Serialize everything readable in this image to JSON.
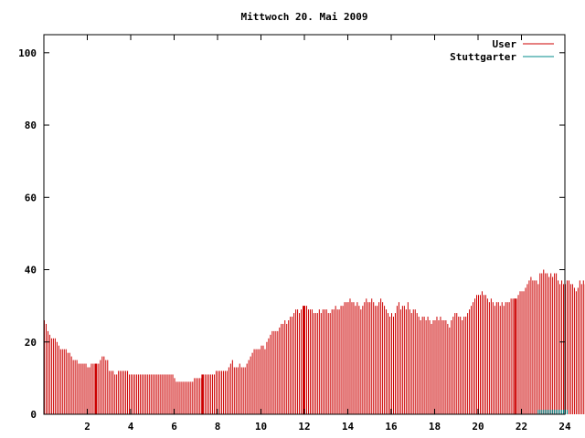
{
  "chart_data": {
    "type": "bar",
    "title": "Mittwoch 20. Mai 2009",
    "xlabel": "",
    "ylabel": "",
    "xlim": [
      0,
      24
    ],
    "ylim": [
      0,
      105
    ],
    "x_ticks": [
      2,
      4,
      6,
      8,
      10,
      12,
      14,
      16,
      18,
      20,
      22,
      24
    ],
    "x_tick_labels": [
      "2",
      "4",
      "6",
      "8",
      "10",
      "12",
      "14",
      "16",
      "18",
      "20",
      "22",
      "24"
    ],
    "y_ticks": [
      0,
      20,
      40,
      60,
      80,
      100
    ],
    "y_tick_labels": [
      "0",
      "20",
      "40",
      "60",
      "80",
      "100"
    ],
    "grid": false,
    "legend_position": "top-right",
    "series": [
      {
        "name": "User",
        "color": "#cc0000",
        "interval_minutes": 5,
        "start_hour": 0,
        "values": [
          26,
          25,
          23,
          22,
          21,
          21,
          21,
          20,
          19,
          18,
          18,
          18,
          18,
          17,
          17,
          16,
          15,
          15,
          15,
          14,
          14,
          14,
          14,
          14,
          13,
          13,
          14,
          14,
          14,
          14,
          14,
          15,
          16,
          16,
          15,
          15,
          12,
          12,
          12,
          11,
          11,
          12,
          12,
          12,
          12,
          12,
          12,
          11,
          11,
          11,
          11,
          11,
          11,
          11,
          11,
          11,
          11,
          11,
          11,
          11,
          11,
          11,
          11,
          11,
          11,
          11,
          11,
          11,
          11,
          11,
          11,
          11,
          10,
          9,
          9,
          9,
          9,
          9,
          9,
          9,
          9,
          9,
          9,
          10,
          10,
          10,
          10,
          10,
          11,
          11,
          11,
          11,
          11,
          11,
          11,
          12,
          12,
          12,
          12,
          12,
          12,
          12,
          13,
          14,
          15,
          13,
          13,
          13,
          14,
          13,
          13,
          13,
          14,
          15,
          16,
          17,
          18,
          18,
          18,
          18,
          19,
          19,
          18,
          20,
          21,
          22,
          23,
          23,
          23,
          23,
          24,
          25,
          25,
          26,
          25,
          26,
          27,
          27,
          28,
          29,
          29,
          28,
          29,
          30,
          30,
          30,
          29,
          29,
          29,
          28,
          28,
          28,
          29,
          28,
          29,
          29,
          29,
          28,
          28,
          29,
          29,
          30,
          29,
          29,
          30,
          30,
          31,
          31,
          31,
          32,
          31,
          31,
          30,
          31,
          30,
          29,
          30,
          31,
          32,
          31,
          31,
          32,
          31,
          30,
          30,
          31,
          32,
          31,
          30,
          29,
          28,
          27,
          28,
          27,
          28,
          30,
          31,
          29,
          30,
          30,
          29,
          31,
          29,
          28,
          29,
          29,
          28,
          27,
          26,
          27,
          27,
          26,
          27,
          26,
          25,
          26,
          26,
          27,
          26,
          27,
          26,
          26,
          26,
          25,
          24,
          26,
          27,
          28,
          28,
          27,
          27,
          26,
          27,
          27,
          28,
          29,
          30,
          31,
          32,
          33,
          33,
          33,
          34,
          33,
          33,
          32,
          31,
          32,
          31,
          30,
          31,
          31,
          30,
          31,
          30,
          31,
          31,
          31,
          32,
          32,
          32,
          32,
          33,
          34,
          34,
          34,
          35,
          36,
          37,
          38,
          37,
          37,
          37,
          36,
          39,
          39,
          40,
          39,
          39,
          38,
          39,
          38,
          39,
          39,
          37,
          36,
          37,
          36,
          36,
          37,
          37,
          36,
          36,
          35,
          34,
          35,
          37,
          36,
          37,
          36,
          38,
          35,
          35,
          35
        ]
      },
      {
        "name": "Stuttgarter",
        "color": "#008b8b",
        "interval_minutes": 5,
        "start_hour": 0,
        "values": [
          0,
          0,
          0,
          0,
          0,
          0,
          0,
          0,
          0,
          0,
          0,
          0,
          0,
          0,
          0,
          0,
          0,
          0,
          0,
          0,
          0,
          0,
          0,
          0,
          0,
          0,
          0,
          0,
          0,
          0,
          0,
          0,
          0,
          0,
          0,
          0,
          0,
          0,
          0,
          0,
          0,
          0,
          0,
          0,
          0,
          0,
          0,
          0,
          0,
          0,
          0,
          0,
          0,
          0,
          0,
          0,
          0,
          0,
          0,
          0,
          0,
          0,
          0,
          0,
          0,
          0,
          0,
          0,
          0,
          0,
          0,
          0,
          0,
          0,
          0,
          0,
          0,
          0,
          0,
          0,
          0,
          0,
          0,
          0,
          0,
          0,
          0,
          0,
          0,
          0,
          0,
          0,
          0,
          0,
          0,
          0,
          0,
          0,
          0,
          0,
          0,
          0,
          0,
          0,
          0,
          0,
          0,
          0,
          0,
          0,
          0,
          0,
          0,
          0,
          0,
          0,
          0,
          0,
          0,
          0,
          0,
          0,
          0,
          0,
          0,
          0,
          0,
          0,
          0,
          0,
          0,
          0,
          0,
          0,
          0,
          0,
          0,
          0,
          0,
          0,
          0,
          0,
          0,
          0,
          0,
          0,
          0,
          0,
          0,
          0,
          0,
          0,
          0,
          0,
          0,
          0,
          0,
          0,
          0,
          0,
          0,
          0,
          0,
          0,
          0,
          0,
          0,
          0,
          0,
          0,
          0,
          0,
          0,
          0,
          0,
          0,
          0,
          0,
          0,
          0,
          0,
          0,
          0,
          0,
          0,
          0,
          0,
          0,
          0,
          0,
          0,
          0,
          0,
          0,
          0,
          0,
          0,
          0,
          0,
          0,
          0,
          0,
          0,
          0,
          0,
          0,
          0,
          0,
          0,
          0,
          0,
          0,
          0,
          0,
          0,
          0,
          0,
          0,
          0,
          0,
          0,
          0,
          0,
          0,
          0,
          0,
          0,
          0,
          0,
          0,
          0,
          0,
          0,
          0,
          0,
          0,
          0,
          0,
          0,
          0,
          0,
          0,
          0,
          0,
          0,
          0,
          0,
          0,
          0,
          0,
          0,
          0,
          0,
          0,
          0,
          0,
          0,
          0,
          0,
          0,
          0,
          0,
          0,
          0,
          0,
          0,
          0,
          0,
          0,
          0,
          0,
          0,
          0,
          1,
          1,
          1,
          1,
          1,
          1,
          1,
          1,
          1,
          1,
          1,
          1,
          1,
          1,
          1,
          1,
          1,
          0,
          0,
          0,
          0,
          0,
          0,
          0,
          0,
          0,
          0,
          0,
          0,
          0,
          0,
          0,
          0,
          0,
          0,
          0,
          0,
          0,
          0,
          0
        ]
      }
    ],
    "highlight_hours": [
      2.4,
      7.3,
      12.0,
      21.7
    ]
  }
}
